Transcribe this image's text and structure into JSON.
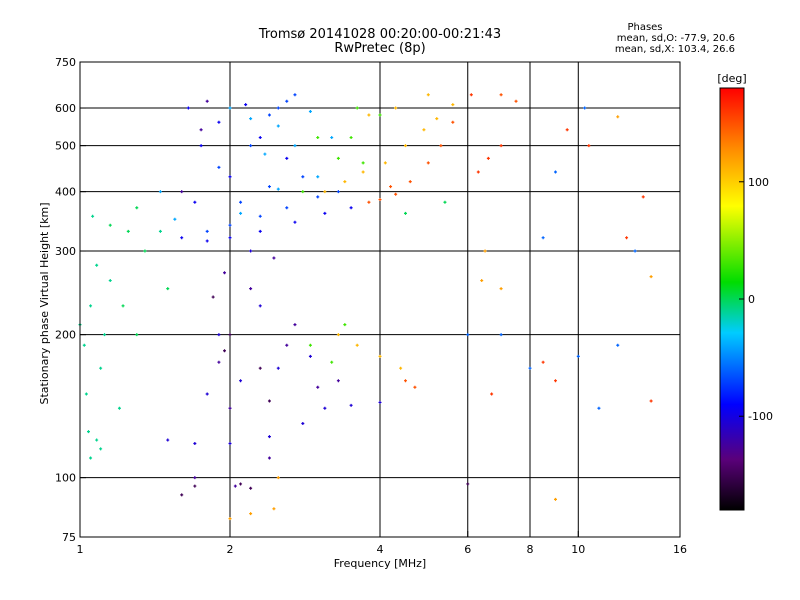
{
  "chart_data": {
    "type": "scatter",
    "title": "Tromsø 20141028 00:20:00-00:21:43",
    "subtitle": "RwPretec (8p)",
    "stats_title": "Phases",
    "stats_lines": [
      "mean, sd,O: -77.9, 20.6",
      "mean, sd,X: 103.4, 26.6"
    ],
    "xlabel": "Frequency [MHz]",
    "ylabel": "Stationary phase Virtual Height [km]",
    "x_scale": "log",
    "y_scale": "log",
    "xlim": [
      1,
      16
    ],
    "ylim": [
      75,
      750
    ],
    "xticks": [
      1,
      2,
      4,
      6,
      8,
      10,
      16
    ],
    "xtick_labels": [
      "1",
      "2",
      "4",
      "6",
      "8",
      "10",
      "16"
    ],
    "x_gridlines": [
      2,
      4,
      6,
      8,
      10
    ],
    "yticks": [
      75,
      100,
      200,
      300,
      400,
      500,
      600,
      750
    ],
    "ytick_labels": [
      "75",
      "100",
      "200",
      "300",
      "400",
      "500",
      "600",
      "750"
    ],
    "y_gridlines": [
      100,
      200,
      300,
      400,
      500,
      600
    ],
    "colorbar": {
      "label": "[deg]",
      "range": [
        -180,
        180
      ],
      "ticks": [
        100,
        0,
        -100
      ],
      "tick_labels": [
        "100",
        "0",
        "-100"
      ]
    },
    "series": [
      {
        "phase": -10,
        "points": [
          [
            1.05,
            110
          ],
          [
            1.08,
            120
          ],
          [
            1.03,
            150
          ],
          [
            1.1,
            170
          ],
          [
            1.02,
            190
          ],
          [
            1.12,
            200
          ],
          [
            1.05,
            230
          ],
          [
            1.15,
            260
          ],
          [
            1.08,
            280
          ],
          [
            1.2,
            140
          ],
          [
            1.04,
            125
          ],
          [
            1.1,
            115
          ],
          [
            1.06,
            355
          ],
          [
            1.45,
            330
          ],
          [
            1.0,
            210
          ]
        ]
      },
      {
        "phase": -70,
        "points": [
          [
            1.8,
            330
          ],
          [
            2.0,
            340
          ],
          [
            2.3,
            355
          ],
          [
            2.6,
            370
          ],
          [
            3.0,
            390
          ],
          [
            3.3,
            400
          ],
          [
            2.1,
            380
          ],
          [
            2.4,
            410
          ],
          [
            2.8,
            430
          ],
          [
            2.5,
            600
          ],
          [
            2.6,
            620
          ],
          [
            2.7,
            640
          ],
          [
            2.4,
            580
          ],
          [
            1.9,
            450
          ],
          [
            2.2,
            500
          ]
        ]
      },
      {
        "phase": -95,
        "points": [
          [
            1.6,
            320
          ],
          [
            1.8,
            315
          ],
          [
            2.0,
            320
          ],
          [
            2.3,
            330
          ],
          [
            2.7,
            345
          ],
          [
            3.1,
            360
          ],
          [
            3.5,
            370
          ],
          [
            1.7,
            380
          ],
          [
            2.0,
            430
          ],
          [
            1.75,
            500
          ],
          [
            1.9,
            560
          ],
          [
            2.3,
            520
          ],
          [
            2.6,
            470
          ],
          [
            1.65,
            600
          ],
          [
            2.15,
            610
          ]
        ]
      },
      {
        "phase": -105,
        "points": [
          [
            1.5,
            120
          ],
          [
            1.7,
            118
          ],
          [
            2.0,
            118
          ],
          [
            2.4,
            122
          ],
          [
            2.8,
            130
          ],
          [
            3.1,
            140
          ],
          [
            3.5,
            142
          ],
          [
            4.0,
            144
          ],
          [
            1.8,
            150
          ],
          [
            2.1,
            160
          ],
          [
            2.5,
            170
          ],
          [
            2.9,
            180
          ],
          [
            1.9,
            200
          ],
          [
            2.3,
            230
          ],
          [
            2.2,
            300
          ]
        ]
      },
      {
        "phase": -125,
        "points": [
          [
            1.7,
            100
          ],
          [
            2.0,
            140
          ],
          [
            2.4,
            110
          ],
          [
            3.0,
            155
          ],
          [
            2.6,
            190
          ],
          [
            1.95,
            270
          ],
          [
            2.05,
            96
          ],
          [
            1.6,
            400
          ],
          [
            1.8,
            620
          ],
          [
            2.2,
            250
          ],
          [
            2.7,
            210
          ],
          [
            3.3,
            160
          ],
          [
            1.75,
            540
          ],
          [
            2.45,
            290
          ],
          [
            1.9,
            175
          ]
        ]
      },
      {
        "phase": 110,
        "points": [
          [
            3.1,
            400
          ],
          [
            3.4,
            420
          ],
          [
            3.7,
            440
          ],
          [
            4.1,
            460
          ],
          [
            4.5,
            500
          ],
          [
            4.9,
            540
          ],
          [
            5.2,
            570
          ],
          [
            5.6,
            610
          ],
          [
            3.3,
            200
          ],
          [
            3.6,
            190
          ],
          [
            4.0,
            180
          ],
          [
            4.4,
            170
          ],
          [
            3.8,
            580
          ],
          [
            4.3,
            600
          ],
          [
            5.0,
            640
          ]
        ]
      },
      {
        "phase": 150,
        "points": [
          [
            3.8,
            380
          ],
          [
            4.0,
            385
          ],
          [
            4.3,
            395
          ],
          [
            4.6,
            420
          ],
          [
            5.0,
            460
          ],
          [
            5.3,
            500
          ],
          [
            5.6,
            560
          ],
          [
            4.5,
            160
          ],
          [
            4.7,
            155
          ],
          [
            4.2,
            410
          ],
          [
            7.0,
            640
          ],
          [
            7.5,
            620
          ]
        ]
      },
      {
        "phase": -40,
        "points": [
          [
            2.0,
            600
          ],
          [
            2.2,
            570
          ],
          [
            2.5,
            550
          ],
          [
            2.9,
            590
          ],
          [
            3.2,
            520
          ],
          [
            2.35,
            480
          ],
          [
            2.1,
            360
          ],
          [
            1.55,
            350
          ],
          [
            2.7,
            500
          ],
          [
            3.0,
            430
          ],
          [
            1.45,
            400
          ],
          [
            2.5,
            405
          ]
        ]
      },
      {
        "phase": 30,
        "points": [
          [
            2.9,
            190
          ],
          [
            3.2,
            175
          ],
          [
            3.4,
            210
          ],
          [
            3.0,
            520
          ],
          [
            3.5,
            520
          ],
          [
            4.0,
            580
          ],
          [
            3.3,
            470
          ],
          [
            2.8,
            400
          ],
          [
            3.7,
            460
          ],
          [
            3.6,
            600
          ]
        ]
      },
      {
        "phase": 160,
        "points": [
          [
            6.1,
            640
          ],
          [
            6.3,
            440
          ],
          [
            6.6,
            470
          ],
          [
            7.0,
            500
          ],
          [
            12.5,
            320
          ],
          [
            13.5,
            390
          ],
          [
            9.5,
            540
          ],
          [
            10.5,
            500
          ],
          [
            8.5,
            175
          ],
          [
            14,
            145
          ],
          [
            6.7,
            150
          ],
          [
            9.0,
            160
          ]
        ]
      },
      {
        "phase": -150,
        "points": [
          [
            2.1,
            97
          ],
          [
            2.2,
            95
          ],
          [
            1.6,
            92
          ],
          [
            1.7,
            96
          ],
          [
            2.3,
            170
          ],
          [
            2.0,
            200
          ],
          [
            1.85,
            240
          ],
          [
            6.0,
            97
          ],
          [
            2.4,
            145
          ],
          [
            1.95,
            185
          ]
        ]
      },
      {
        "phase": 120,
        "points": [
          [
            2.2,
            84
          ],
          [
            2.45,
            86
          ],
          [
            2.5,
            100
          ],
          [
            2.0,
            82
          ],
          [
            9.0,
            90
          ],
          [
            6.4,
            260
          ],
          [
            7.0,
            250
          ],
          [
            14.0,
            265
          ],
          [
            12.0,
            575
          ],
          [
            6.5,
            300
          ]
        ]
      },
      {
        "phase": -60,
        "points": [
          [
            6.0,
            200
          ],
          [
            7.0,
            200
          ],
          [
            8.0,
            170
          ],
          [
            10.0,
            180
          ],
          [
            11.0,
            140
          ],
          [
            12.0,
            190
          ],
          [
            13.0,
            300
          ],
          [
            9.0,
            440
          ],
          [
            10.3,
            600
          ],
          [
            8.5,
            320
          ]
        ]
      },
      {
        "phase": 0,
        "points": [
          [
            1.25,
            330
          ],
          [
            1.35,
            300
          ],
          [
            1.3,
            200
          ],
          [
            1.22,
            230
          ],
          [
            1.5,
            250
          ],
          [
            1.15,
            340
          ],
          [
            4.5,
            360
          ],
          [
            5.4,
            380
          ],
          [
            1.3,
            370
          ]
        ]
      }
    ]
  }
}
